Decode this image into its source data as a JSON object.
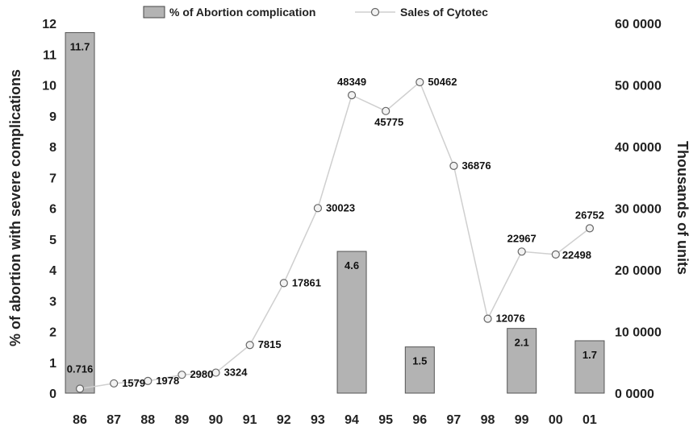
{
  "chart_data": {
    "type": "bar+line",
    "categories": [
      "86",
      "87",
      "88",
      "89",
      "90",
      "91",
      "92",
      "93",
      "94",
      "95",
      "96",
      "97",
      "98",
      "99",
      "00",
      "01"
    ],
    "series": [
      {
        "name": "% of Abortion complication",
        "type": "bar",
        "axis": "left",
        "color": "#b3b3b3",
        "values": [
          11.7,
          null,
          null,
          null,
          null,
          null,
          null,
          null,
          4.6,
          null,
          1.5,
          null,
          null,
          2.1,
          null,
          1.7
        ],
        "labels": [
          "11.7",
          "",
          "",
          "",
          "",
          "",
          "",
          "",
          "4.6",
          "",
          "1.5",
          "",
          "",
          "2.1",
          "",
          "1.7"
        ]
      },
      {
        "name": "Sales of Cytotec",
        "type": "line",
        "axis": "right",
        "color": "#cfcfcf",
        "values": [
          716,
          1579,
          1978,
          2980,
          3324,
          7815,
          17861,
          30023,
          48349,
          45775,
          50462,
          36876,
          12076,
          22967,
          22498,
          26752
        ],
        "labels": [
          "0.716",
          "1579",
          "1978",
          "2980",
          "3324",
          "7815",
          "17861",
          "30023",
          "48349",
          "45775",
          "50462",
          "36876",
          "12076",
          "22967",
          "22498",
          "26752"
        ]
      }
    ],
    "ylabel": "% of abortion with severe complications",
    "y2label": "Thousands of units",
    "ylim": [
      0,
      12
    ],
    "y2lim": [
      0,
      60000
    ],
    "yticks": [
      "0",
      "1",
      "2",
      "3",
      "4",
      "5",
      "6",
      "7",
      "8",
      "9",
      "10",
      "11",
      "12"
    ],
    "y2ticks": [
      "0 0000",
      "10 0000",
      "20 0000",
      "30 0000",
      "40 0000",
      "50 0000",
      "60 0000"
    ],
    "legend_position": "top",
    "grid": false
  }
}
